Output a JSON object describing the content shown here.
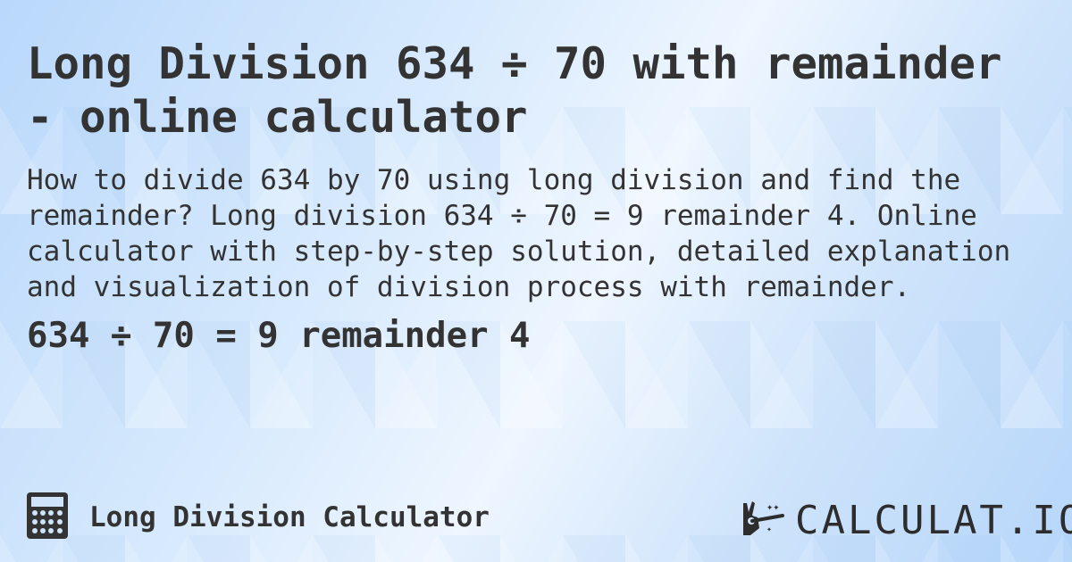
{
  "title": "Long Division 634 ÷ 70 with remainder - online calculator",
  "description": "How to divide 634 by 70 using long division and find the remainder? Long division 634 ÷ 70 = 9 remainder 4. Online calculator with step-by-step solution, detailed explanation and visualization of division process with remainder.",
  "result": "634 ÷ 70 = 9 remainder 4",
  "footer": {
    "calculator_icon": "calculator-icon",
    "label": "Long Division Calculator",
    "logo_text": "CALCULAT.IO",
    "logo_icon": "magic-wand-hand-icon"
  },
  "colors": {
    "text": "#333333",
    "background": "#d8eafd"
  }
}
